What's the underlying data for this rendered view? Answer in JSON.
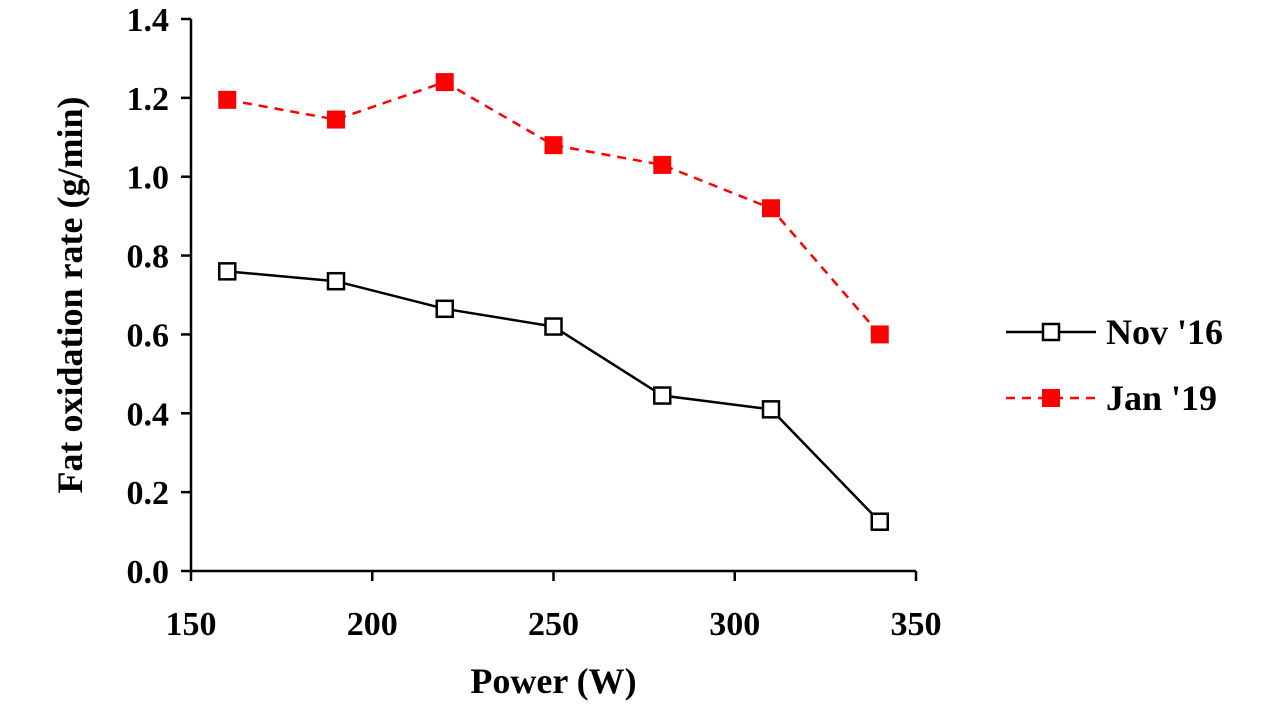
{
  "chart_data": {
    "type": "line",
    "title": "",
    "xlabel": "Power (W)",
    "ylabel": "Fat oxidation rate (g/min)",
    "xlim": [
      150,
      350
    ],
    "ylim": [
      0.0,
      1.4
    ],
    "x_ticks": [
      150,
      200,
      250,
      300,
      350
    ],
    "x_tick_labels": [
      "150",
      "200",
      "250",
      "300",
      "350"
    ],
    "y_ticks": [
      0.0,
      0.2,
      0.4,
      0.6,
      0.8,
      1.0,
      1.2,
      1.4
    ],
    "y_tick_labels": [
      "0.0",
      "0.2",
      "0.4",
      "0.6",
      "0.8",
      "1.0",
      "1.2",
      "1.4"
    ],
    "grid": false,
    "legend_position": "right",
    "x": [
      160,
      190,
      220,
      250,
      280,
      310,
      340
    ],
    "series": [
      {
        "name": "Nov '16",
        "values": [
          0.76,
          0.735,
          0.665,
          0.62,
          0.445,
          0.41,
          0.125
        ],
        "color": "#000000",
        "marker": "hollow-square",
        "line_style": "solid"
      },
      {
        "name": "Jan '19",
        "values": [
          1.195,
          1.145,
          1.24,
          1.08,
          1.03,
          0.92,
          0.6
        ],
        "color": "#ff0000",
        "marker": "filled-square",
        "line_style": "dashed"
      }
    ]
  }
}
